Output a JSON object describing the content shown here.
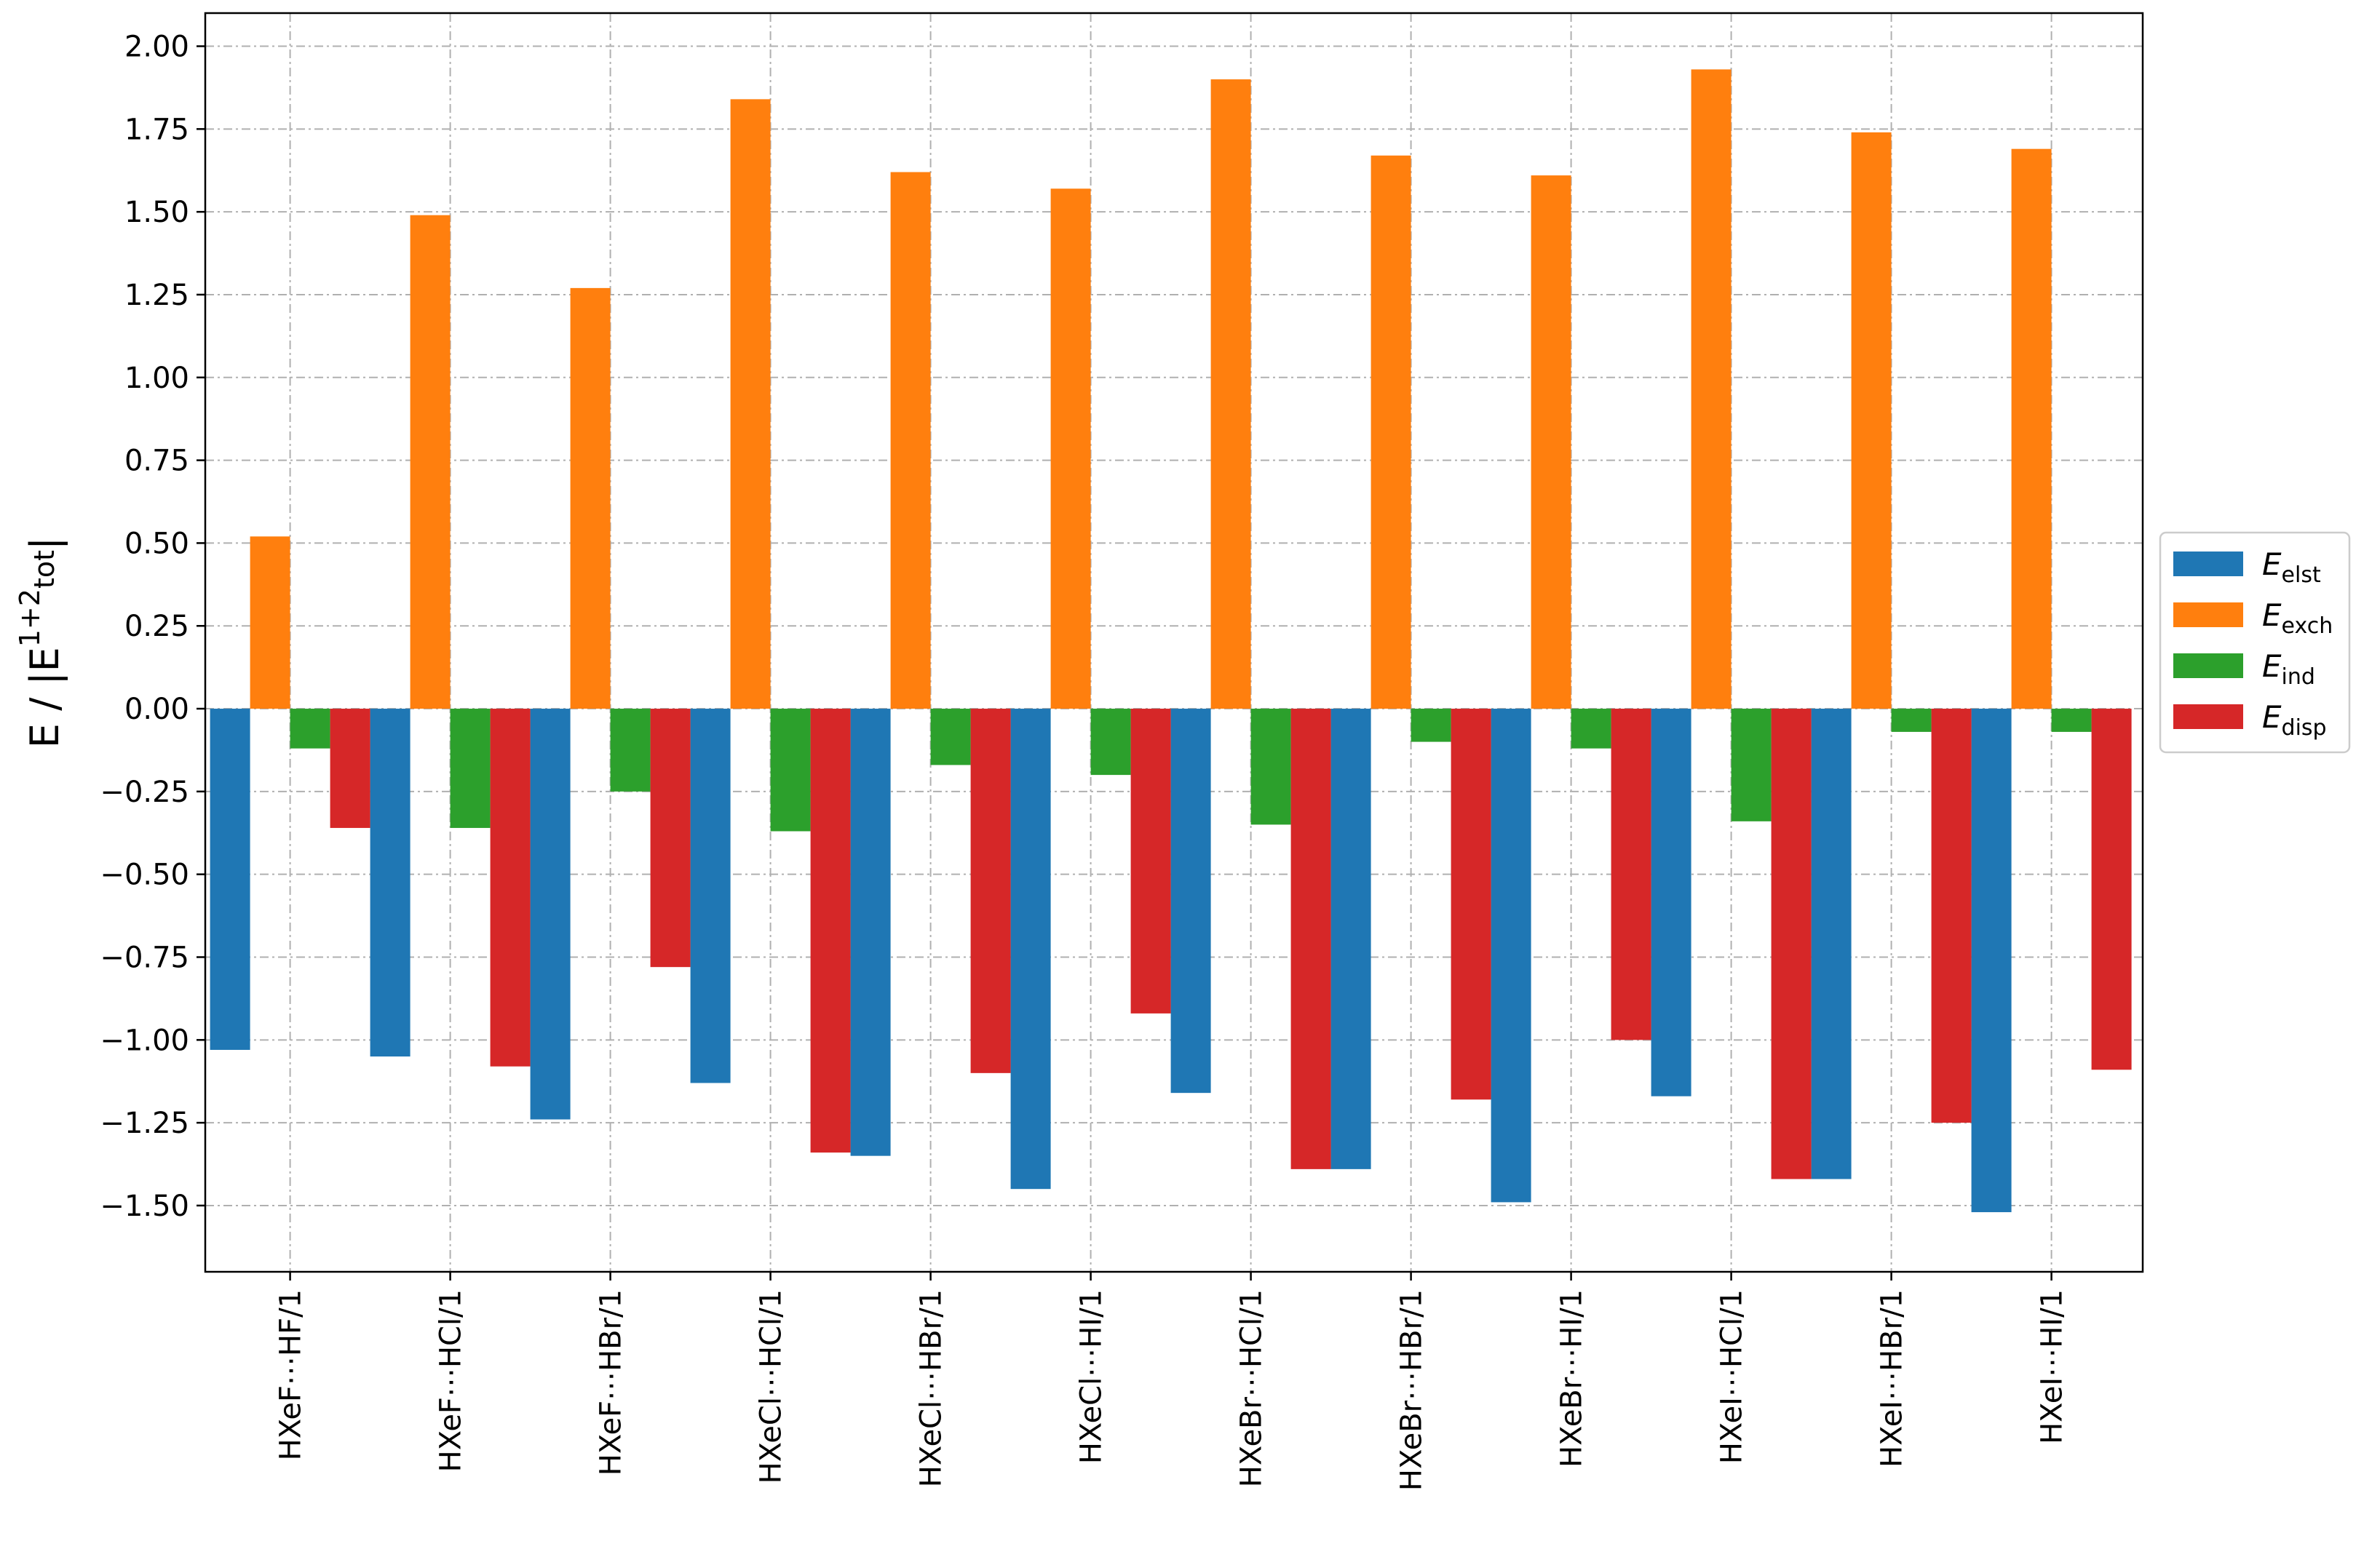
{
  "chart_data": {
    "type": "bar",
    "categories": [
      "HXeF⋯HF/1",
      "HXeF⋯HCl/1",
      "HXeF⋯HBr/1",
      "HXeCl⋯HCl/1",
      "HXeCl⋯HBr/1",
      "HXeCl⋯HI/1",
      "HXeBr⋯HCl/1",
      "HXeBr⋯HBr/1",
      "HXeBr⋯HI/1",
      "HXeI⋯HCl/1",
      "HXeI⋯HBr/1",
      "HXeI⋯HI/1"
    ],
    "series": [
      {
        "name": "E",
        "sub": "elst",
        "color": "#1f77b4",
        "values": [
          -1.03,
          -1.05,
          -1.24,
          -1.13,
          -1.35,
          -1.45,
          -1.16,
          -1.39,
          -1.49,
          -1.17,
          -1.42,
          -1.52
        ]
      },
      {
        "name": "E",
        "sub": "exch",
        "color": "#ff7f0e",
        "values": [
          0.52,
          1.49,
          1.27,
          1.84,
          1.62,
          1.57,
          1.9,
          1.67,
          1.61,
          1.93,
          1.74,
          1.69
        ]
      },
      {
        "name": "E",
        "sub": "ind",
        "color": "#2ca02c",
        "values": [
          -0.12,
          -0.36,
          -0.25,
          -0.37,
          -0.17,
          -0.2,
          -0.35,
          -0.1,
          -0.12,
          -0.34,
          -0.07,
          -0.07
        ]
      },
      {
        "name": "E",
        "sub": "disp",
        "color": "#d62728",
        "values": [
          -0.36,
          -1.08,
          -0.78,
          -1.34,
          -1.1,
          -0.92,
          -1.39,
          -1.18,
          -1.0,
          -1.42,
          -1.25,
          -1.09
        ]
      }
    ],
    "ylabel": {
      "base": "E / |E",
      "sub": "tot",
      "sup": "1+2",
      "end": "|"
    },
    "xlabel": "",
    "title": "",
    "ylim": [
      -1.7,
      2.1
    ],
    "yticks": [
      -1.5,
      -1.25,
      -1.0,
      -0.75,
      -0.5,
      -0.25,
      0.0,
      0.25,
      0.5,
      0.75,
      1.0,
      1.25,
      1.5,
      1.75,
      2.0
    ],
    "ytick_labels": [
      "−1.50",
      "−1.25",
      "−1.00",
      "−0.75",
      "−0.50",
      "−0.25",
      "0.00",
      "0.25",
      "0.50",
      "0.75",
      "1.00",
      "1.25",
      "1.50",
      "1.75",
      "2.00"
    ],
    "grid": true,
    "legend": "outside-right-center"
  }
}
